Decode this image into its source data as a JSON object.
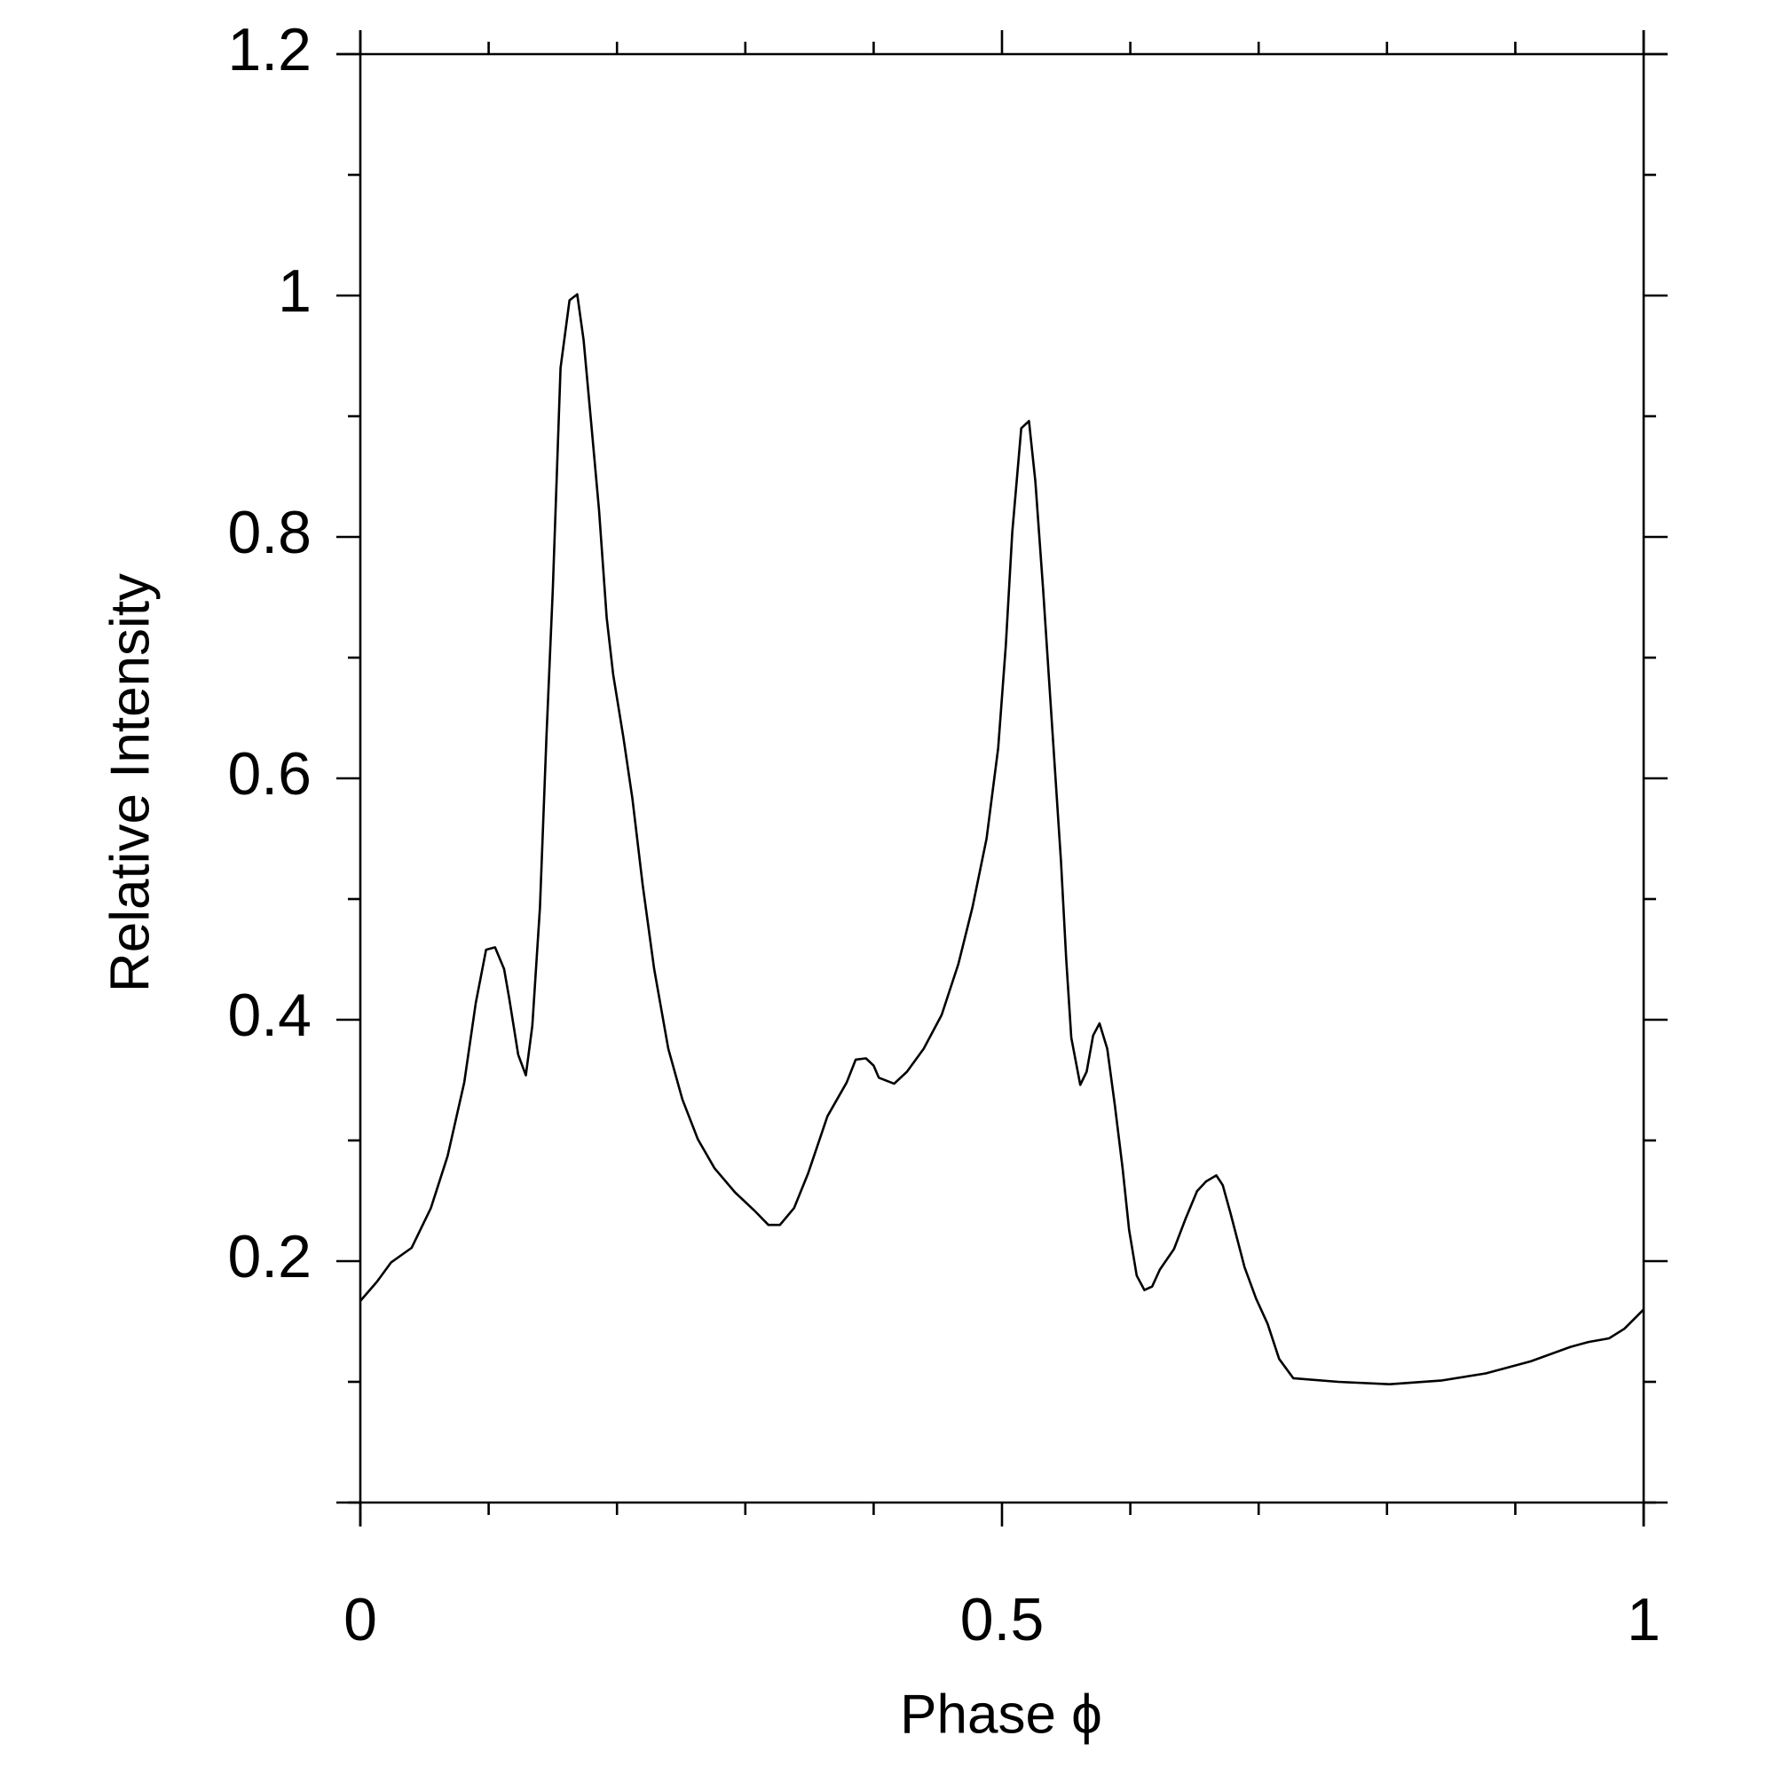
{
  "chart_data": {
    "type": "line",
    "xlabel": "Phase ϕ",
    "ylabel": "Relative Intensity",
    "xlim": [
      0,
      1
    ],
    "ylim": [
      0,
      1.2
    ],
    "xticks": [
      0,
      0.5,
      1
    ],
    "yticks": [
      0.2,
      0.4,
      0.6,
      0.8,
      1,
      1.2
    ],
    "xminorticks": [
      0.1,
      0.2,
      0.3,
      0.4,
      0.6,
      0.7,
      0.8,
      0.9
    ],
    "yminorticks": [
      0,
      0.1,
      0.3,
      0.5,
      0.7,
      0.9,
      1.1
    ],
    "mirror_ticks": true,
    "grid": false,
    "series": [
      {
        "color": "#000000",
        "x": [
          0,
          0.013,
          0.024,
          0.04,
          0.055,
          0.068,
          0.081,
          0.09,
          0.098,
          0.105,
          0.112,
          0.116,
          0.123,
          0.129,
          0.134,
          0.14,
          0.145,
          0.15,
          0.156,
          0.163,
          0.169,
          0.174,
          0.18,
          0.186,
          0.192,
          0.197,
          0.205,
          0.212,
          0.22,
          0.229,
          0.24,
          0.251,
          0.263,
          0.276,
          0.292,
          0.307,
          0.318,
          0.327,
          0.338,
          0.349,
          0.364,
          0.379,
          0.386,
          0.394,
          0.4,
          0.404,
          0.416,
          0.426,
          0.439,
          0.453,
          0.466,
          0.477,
          0.488,
          0.497,
          0.503,
          0.508,
          0.515,
          0.521,
          0.526,
          0.532,
          0.539,
          0.546,
          0.55,
          0.554,
          0.561,
          0.566,
          0.571,
          0.576,
          0.582,
          0.588,
          0.594,
          0.599,
          0.605,
          0.611,
          0.617,
          0.623,
          0.634,
          0.643,
          0.652,
          0.659,
          0.667,
          0.672,
          0.678,
          0.689,
          0.698,
          0.707,
          0.716,
          0.727,
          0.762,
          0.802,
          0.842,
          0.877,
          0.912,
          0.943,
          0.957,
          0.973,
          0.985,
          1.0
        ],
        "values": [
          0.167,
          0.183,
          0.199,
          0.211,
          0.244,
          0.287,
          0.348,
          0.414,
          0.458,
          0.46,
          0.442,
          0.418,
          0.371,
          0.354,
          0.395,
          0.493,
          0.634,
          0.757,
          0.94,
          0.996,
          1.001,
          0.963,
          0.893,
          0.822,
          0.733,
          0.686,
          0.634,
          0.583,
          0.512,
          0.442,
          0.376,
          0.334,
          0.301,
          0.277,
          0.257,
          0.242,
          0.23,
          0.23,
          0.244,
          0.273,
          0.32,
          0.348,
          0.367,
          0.368,
          0.362,
          0.352,
          0.347,
          0.357,
          0.376,
          0.404,
          0.446,
          0.493,
          0.55,
          0.625,
          0.71,
          0.804,
          0.89,
          0.896,
          0.846,
          0.757,
          0.644,
          0.531,
          0.451,
          0.385,
          0.346,
          0.357,
          0.387,
          0.397,
          0.376,
          0.329,
          0.277,
          0.226,
          0.188,
          0.176,
          0.179,
          0.193,
          0.21,
          0.235,
          0.258,
          0.266,
          0.271,
          0.263,
          0.24,
          0.195,
          0.169,
          0.148,
          0.119,
          0.103,
          0.1,
          0.098,
          0.101,
          0.107,
          0.117,
          0.129,
          0.133,
          0.136,
          0.144,
          0.16
        ]
      }
    ]
  }
}
